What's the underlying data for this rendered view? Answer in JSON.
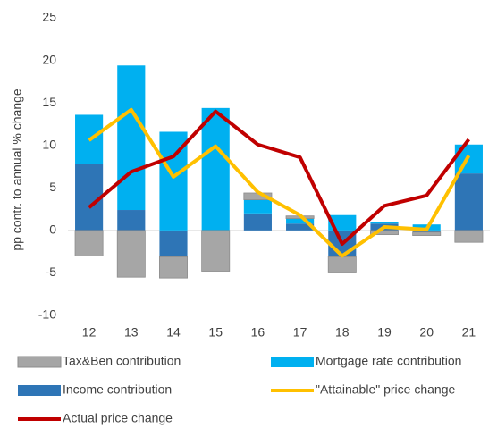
{
  "chart_data": {
    "type": "bar",
    "stacked": true,
    "y_label": "pp contr. to annual % change",
    "categories": [
      "12",
      "13",
      "14",
      "15",
      "16",
      "17",
      "18",
      "19",
      "20",
      "21"
    ],
    "series": [
      {
        "name": "Tax&Ben contribution",
        "type": "bar",
        "color": "#a6a6a6",
        "values": [
          -3.0,
          -5.5,
          -2.5,
          -4.8,
          0.8,
          0.3,
          -1.8,
          -0.5,
          -0.4,
          -1.4
        ]
      },
      {
        "name": "Mortgage rate contribution",
        "type": "bar",
        "color": "#00b0f0",
        "values": [
          5.8,
          17.0,
          11.6,
          14.4,
          1.6,
          0.6,
          1.8,
          0.2,
          0.7,
          3.4
        ]
      },
      {
        "name": "Income contribution",
        "type": "bar",
        "color": "#2e75b6",
        "values": [
          7.8,
          2.4,
          -3.1,
          0.0,
          2.0,
          0.8,
          -3.1,
          0.8,
          -0.2,
          6.7
        ]
      },
      {
        "name": "\"Attainable\" price change",
        "type": "line",
        "color": "#ffc000",
        "values": [
          10.6,
          14.2,
          6.3,
          9.9,
          4.5,
          1.8,
          -3.0,
          0.4,
          0.1,
          8.8
        ]
      },
      {
        "name": "Actual price change",
        "type": "line",
        "color": "#c00000",
        "values": [
          2.7,
          6.9,
          8.7,
          14.0,
          10.1,
          8.6,
          -1.6,
          2.9,
          4.1,
          10.7
        ]
      }
    ],
    "stack_order": [
      2,
      1,
      0
    ],
    "ylim": [
      -10,
      25
    ],
    "yticks": [
      -10,
      -5,
      0,
      5,
      10,
      15,
      20,
      25
    ],
    "grid": false
  }
}
